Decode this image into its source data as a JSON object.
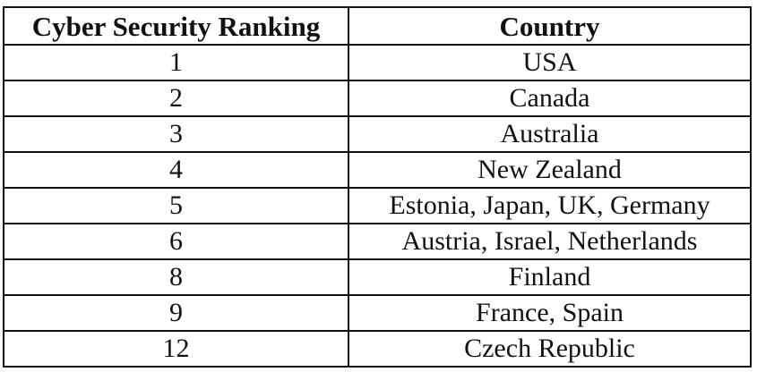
{
  "table": {
    "headers": [
      "Cyber Security Ranking",
      "Country"
    ],
    "rows": [
      [
        "1",
        "USA"
      ],
      [
        "2",
        "Canada"
      ],
      [
        "3",
        "Australia"
      ],
      [
        "4",
        "New Zealand"
      ],
      [
        "5",
        "Estonia, Japan, UK, Germany"
      ],
      [
        "6",
        "Austria, Israel, Netherlands"
      ],
      [
        "8",
        "Finland"
      ],
      [
        "9",
        "France, Spain"
      ],
      [
        "12",
        "Czech Republic"
      ]
    ]
  }
}
